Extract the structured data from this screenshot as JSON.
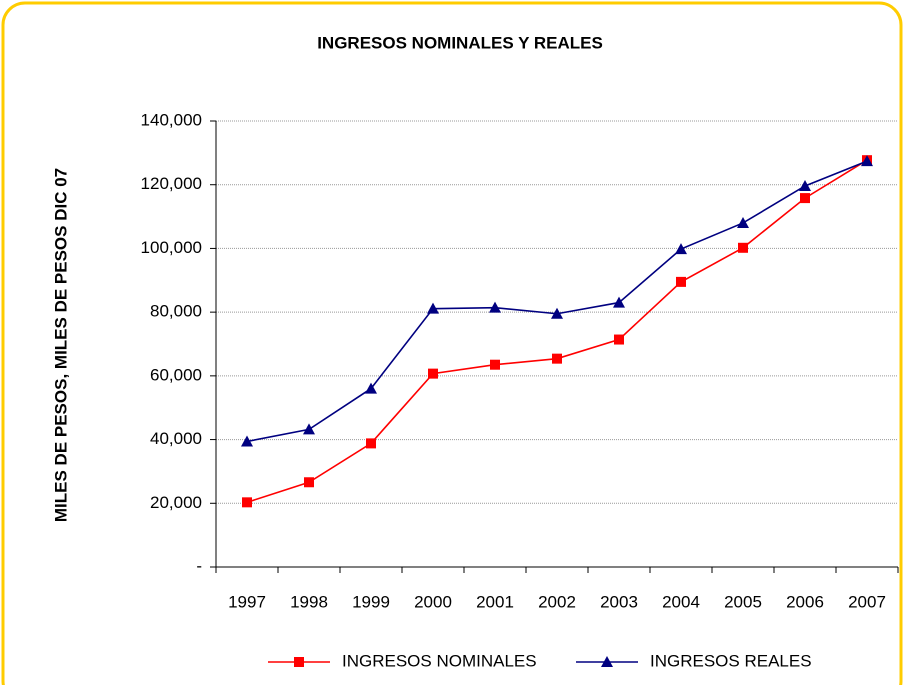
{
  "chart_data": {
    "type": "line",
    "title": "INGRESOS NOMINALES Y REALES",
    "y_label": "MILES DE PESOS, MILES DE PESOS DIC 07",
    "categories": [
      "1997",
      "1998",
      "1999",
      "2000",
      "2001",
      "2002",
      "2003",
      "2004",
      "2005",
      "2006",
      "2007"
    ],
    "series": [
      {
        "name": "INGRESOS NOMINALES",
        "color": "#ff0000",
        "marker": "square",
        "values": [
          20300,
          26600,
          38800,
          60700,
          63500,
          65400,
          71400,
          89500,
          100200,
          115800,
          127700
        ]
      },
      {
        "name": "INGRESOS REALES",
        "color": "#000080",
        "marker": "triangle",
        "values": [
          39400,
          43200,
          56000,
          81100,
          81400,
          79500,
          83000,
          99800,
          108000,
          119600,
          127400
        ]
      }
    ],
    "ylim": [
      0,
      140000
    ],
    "yticks": [
      {
        "value": 0,
        "label": "-"
      },
      {
        "value": 20000,
        "label": "20,000"
      },
      {
        "value": 40000,
        "label": "40,000"
      },
      {
        "value": 60000,
        "label": "60,000"
      },
      {
        "value": 80000,
        "label": "80,000"
      },
      {
        "value": 100000,
        "label": "100,000"
      },
      {
        "value": 120000,
        "label": "120,000"
      },
      {
        "value": 140000,
        "label": "140,000"
      }
    ],
    "grid": true,
    "legend": "bottom"
  }
}
